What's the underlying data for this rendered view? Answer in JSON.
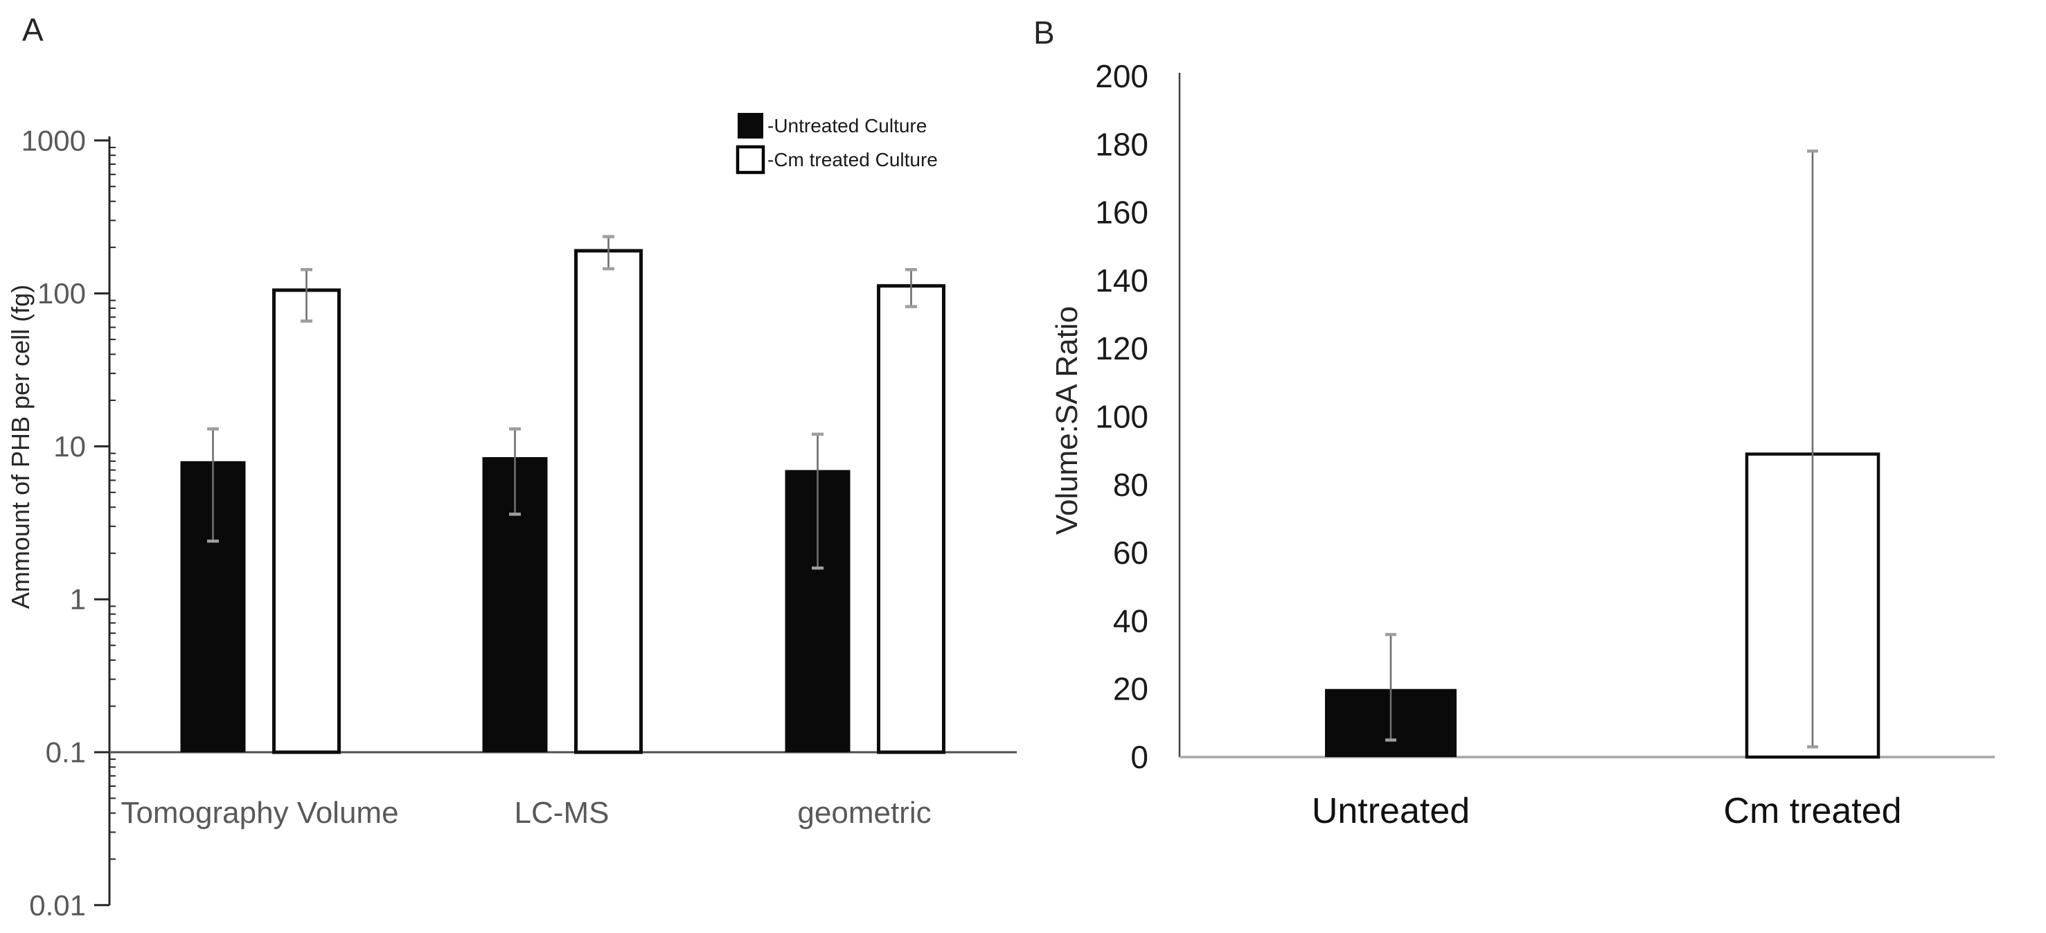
{
  "figure": {
    "background": "#ffffff",
    "colors": {
      "axis": "#262626",
      "tick_label_gray": "#595959",
      "tick_label_dark": "#1a1a1a",
      "category_label_a": "#595959",
      "category_label_b": "#111111",
      "error_line": "#6e6e6e",
      "error_cap": "#9e9e9e",
      "baseline_a": "#4d4d4d",
      "baseline_b": "#a6a6a6",
      "bar_black": "#0a0a0a",
      "bar_white": "#ffffff",
      "bar_border": "#0d0d0d"
    }
  },
  "chart_data": [
    {
      "type": "bar",
      "panel_label": "A",
      "scale": "log",
      "ylabel": "Ammount of PHB per cell (fg)",
      "ylim": [
        0.01,
        1000
      ],
      "baseline_value": 0.1,
      "yticks": [
        1000,
        100,
        10,
        1,
        0.1,
        0.01
      ],
      "ytick_labels": [
        "1000",
        "100",
        "10",
        "1",
        "0.1",
        "0.01"
      ],
      "categories": [
        "Tomography Volume",
        "LC-MS",
        "geometric"
      ],
      "grid": false,
      "legend_position": "top-right-inside",
      "series": [
        {
          "name": "Untreated Culture",
          "legend_label": "-Untreated Culture",
          "fill": "#0a0a0a",
          "values": [
            8,
            8.5,
            7
          ],
          "err_low": [
            2.4,
            3.6,
            1.6
          ],
          "err_high": [
            13,
            13,
            12
          ]
        },
        {
          "name": "Cm treated Culture",
          "legend_label": "-Cm treated Culture",
          "fill": "#ffffff",
          "values": [
            105,
            190,
            112
          ],
          "err_low": [
            66,
            145,
            82
          ],
          "err_high": [
            143,
            235,
            143
          ]
        }
      ]
    },
    {
      "type": "bar",
      "panel_label": "B",
      "scale": "linear",
      "ylabel": "Volume:SA Ratio",
      "ylim": [
        0,
        200
      ],
      "ytick_step": 20,
      "yticks": [
        200,
        180,
        160,
        140,
        120,
        100,
        80,
        60,
        40,
        20,
        0
      ],
      "ytick_labels": [
        "200",
        "180",
        "160",
        "140",
        "120",
        "100",
        "80",
        "60",
        "40",
        "20",
        "0"
      ],
      "categories": [
        "Untreated",
        "Cm treated"
      ],
      "grid": false,
      "bars": [
        {
          "category": "Untreated",
          "fill": "#0a0a0a",
          "value": 20,
          "err_low": 5,
          "err_high": 36
        },
        {
          "category": "Cm treated",
          "fill": "#ffffff",
          "value": 89,
          "err_low": 3,
          "err_high": 178
        }
      ]
    }
  ]
}
